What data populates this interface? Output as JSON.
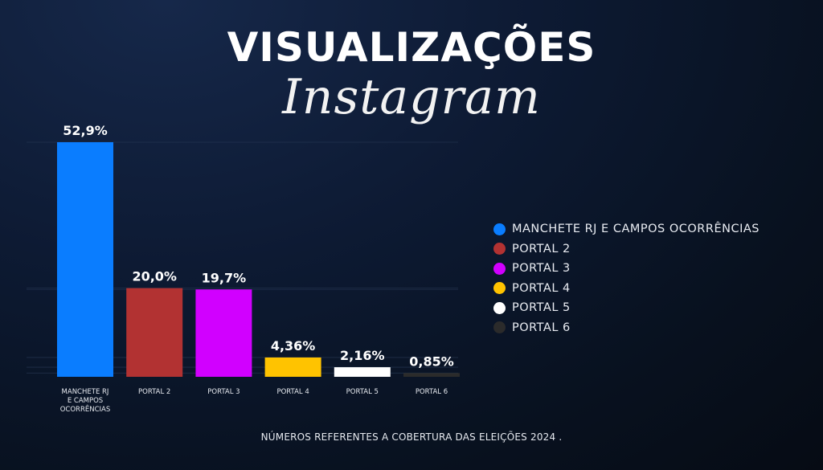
{
  "header": {
    "title": "VISUALIZAÇÕES",
    "subtitle": "Instagram"
  },
  "footer": {
    "note": "NÚMEROS REFERENTES A COBERTURA DAS ELEIÇÕES 2024 ."
  },
  "chart_data": {
    "type": "bar",
    "categories": [
      [
        "MANCHETE RJ",
        "E CAMPOS",
        "OCORRÊNCIAS"
      ],
      [
        "PORTAL 2"
      ],
      [
        "PORTAL 3"
      ],
      [
        "PORTAL 4"
      ],
      [
        "PORTAL 5"
      ],
      [
        "PORTAL 6"
      ]
    ],
    "values": [
      52.9,
      20.0,
      19.7,
      4.36,
      2.16,
      0.85
    ],
    "data_labels": [
      "52,9%",
      "20,0%",
      "19,7%",
      "4,36%",
      "2,16%",
      "0,85%"
    ],
    "colors": [
      "#0a7dff",
      "#b23232",
      "#d100ff",
      "#ffc300",
      "#ffffff",
      "#2b2b2b"
    ],
    "ylim": [
      0,
      52.9
    ],
    "grid": true,
    "legend_position": "right",
    "legend": [
      {
        "label": "MANCHETE RJ E CAMPOS OCORRÊNCIAS",
        "color": "#0a7dff"
      },
      {
        "label": "PORTAL 2",
        "color": "#b23232"
      },
      {
        "label": "PORTAL 3",
        "color": "#d100ff"
      },
      {
        "label": "PORTAL 4",
        "color": "#ffc300"
      },
      {
        "label": "PORTAL 5",
        "color": "#ffffff"
      },
      {
        "label": "PORTAL 6",
        "color": "#2b2b2b"
      }
    ]
  }
}
